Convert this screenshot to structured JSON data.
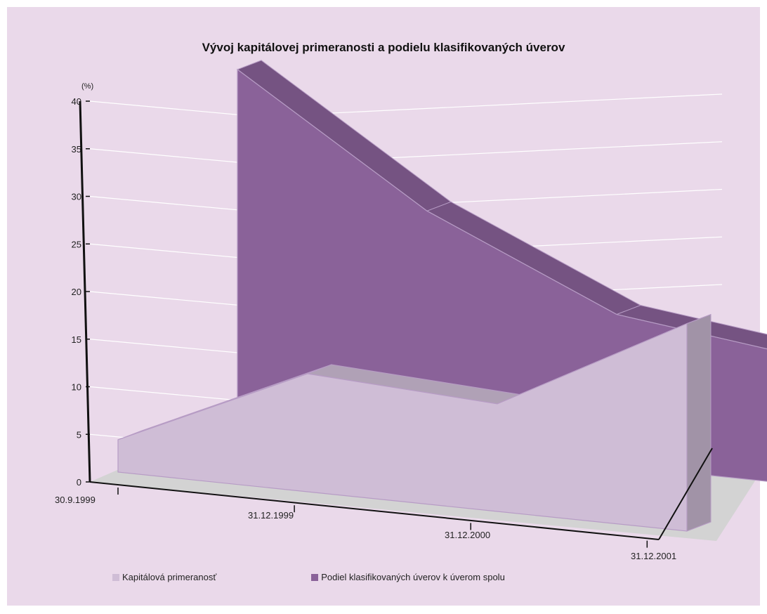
{
  "chart_data": {
    "type": "area",
    "title": "Vývoj kapitálovej primeranosti a podielu klasifikovaných úverov",
    "ylabel": "(%)",
    "ylim": [
      0,
      40
    ],
    "yticks": [
      "0",
      "5",
      "10",
      "15",
      "20",
      "25",
      "30",
      "35",
      "40"
    ],
    "categories": [
      "30.9.1999",
      "31.12.1999",
      "31.12.2000",
      "31.12.2001"
    ],
    "series": [
      {
        "name": "Kapitálová primeranosť",
        "values": [
          3.4,
          12.4,
          11.3,
          21.8
        ],
        "color": "#cfbdd6"
      },
      {
        "name": "Podiel klasifikovaných úverov k úverom spolu",
        "values": [
          37.5,
          24.7,
          15.9,
          13.4
        ],
        "color": "#8a6299"
      }
    ],
    "grid": true,
    "legend_position": "bottom-left"
  }
}
